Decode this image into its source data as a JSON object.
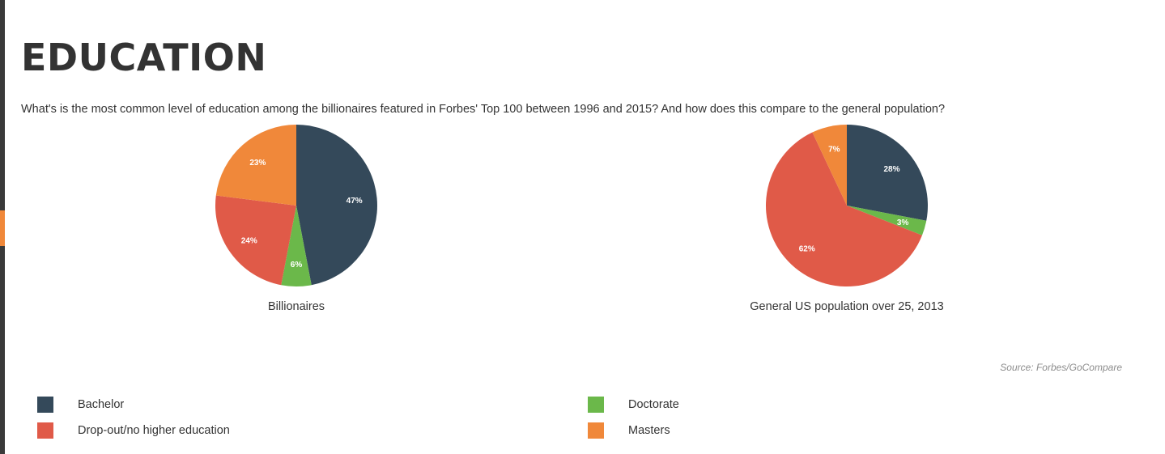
{
  "page": {
    "title": "EDUCATION",
    "question": "What's is the most common level of education among the billionaires featured in Forbes' Top 100 between 1996 and 2015? And how does this compare to the general population?",
    "source": "Source: Forbes/GoCompare"
  },
  "colors": {
    "Bachelor": "#34495a",
    "Doctorate": "#6bb84a",
    "Drop-out/no higher education": "#e05a48",
    "Masters": "#f0883a"
  },
  "legend": [
    {
      "label": "Bachelor",
      "color": "#34495a"
    },
    {
      "label": "Drop-out/no higher education",
      "color": "#e05a48"
    },
    {
      "label": "Doctorate",
      "color": "#6bb84a"
    },
    {
      "label": "Masters",
      "color": "#f0883a"
    }
  ],
  "chart_data": [
    {
      "type": "pie",
      "title": "Billionaires",
      "slices": [
        {
          "label": "Bachelor",
          "value": 47,
          "display": "47%"
        },
        {
          "label": "Doctorate",
          "value": 6,
          "display": "6%"
        },
        {
          "label": "Drop-out/no higher education",
          "value": 24,
          "display": "24%"
        },
        {
          "label": "Masters",
          "value": 23,
          "display": "23%"
        }
      ]
    },
    {
      "type": "pie",
      "title": "General US population over 25, 2013",
      "slices": [
        {
          "label": "Bachelor",
          "value": 28,
          "display": "28%"
        },
        {
          "label": "Doctorate",
          "value": 3,
          "display": "3%"
        },
        {
          "label": "Drop-out/no higher education",
          "value": 62,
          "display": "62%"
        },
        {
          "label": "Masters",
          "value": 7,
          "display": "7%"
        }
      ]
    }
  ]
}
